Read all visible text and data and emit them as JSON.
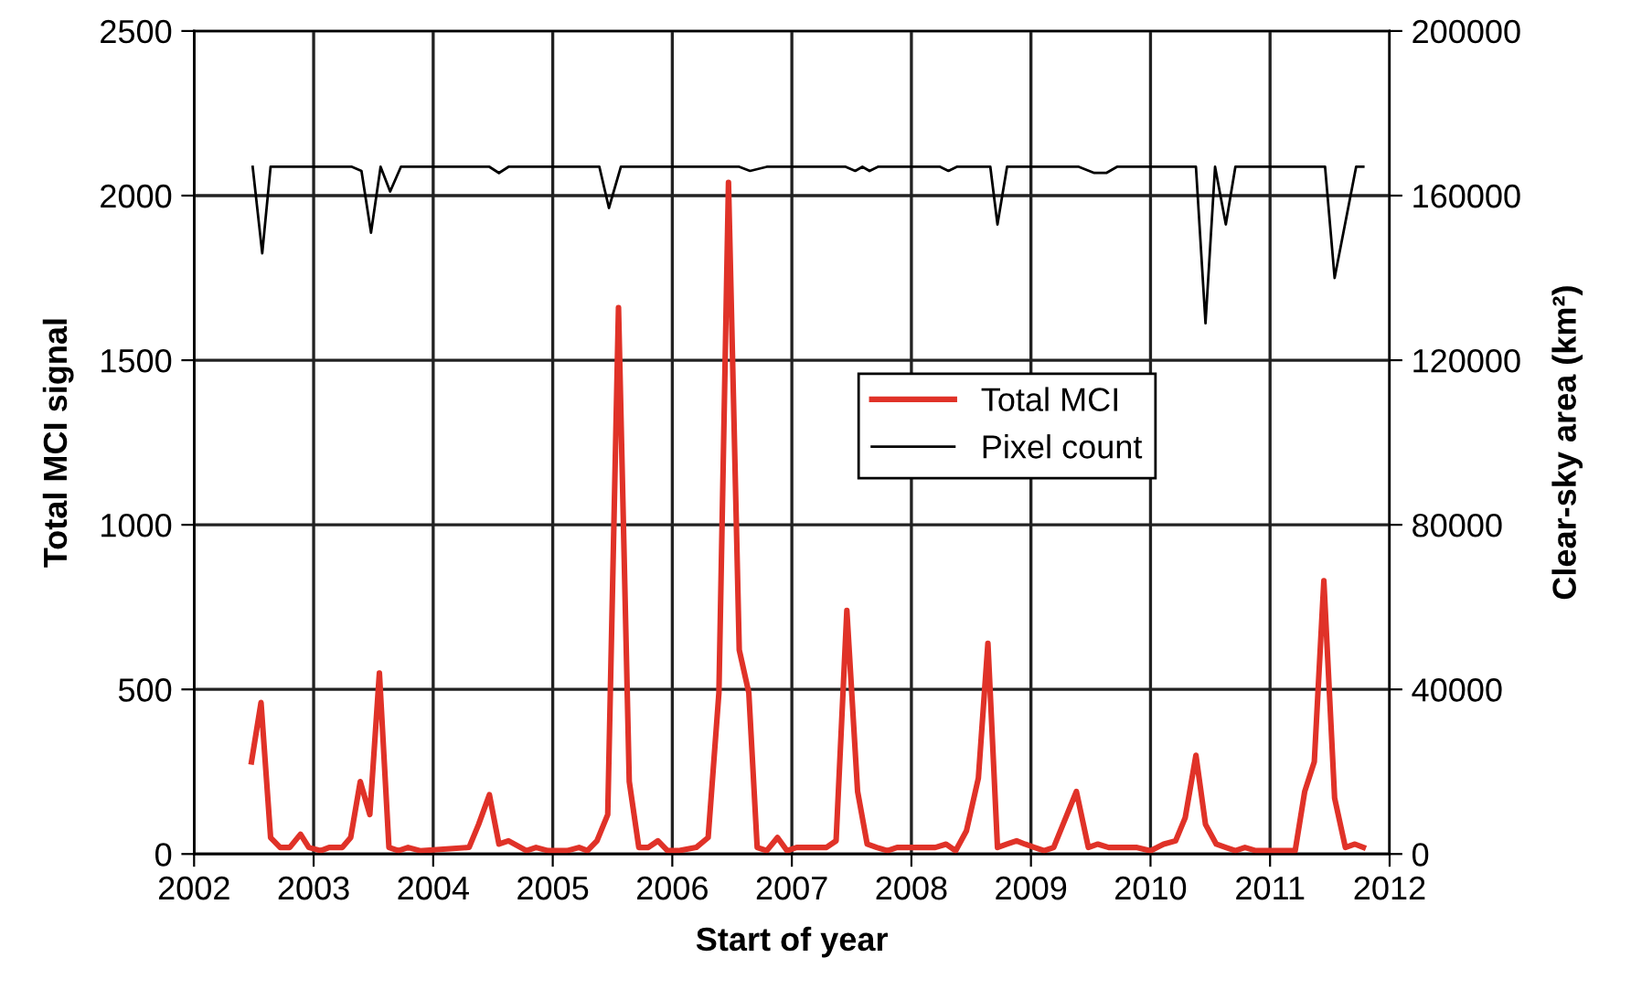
{
  "chart_data": {
    "type": "line",
    "xlabel": "Start of year",
    "ylabel": "Total MCI signal",
    "y2label": "Clear-sky area (km²)",
    "xlim": [
      2002,
      2012
    ],
    "xticks": [
      2002,
      2003,
      2004,
      2005,
      2006,
      2007,
      2008,
      2009,
      2010,
      2011,
      2012
    ],
    "ylim": [
      0,
      2500
    ],
    "yticks": [
      0,
      500,
      1000,
      1500,
      2000,
      2500
    ],
    "y2lim": [
      0,
      200000
    ],
    "y2ticks": [
      0,
      40000,
      80000,
      120000,
      160000,
      200000
    ],
    "grid": true,
    "legend": "center",
    "marker": "none",
    "line_style": "solid",
    "series": [
      {
        "name": "Total MCI",
        "color": "#e03228",
        "x": [
          2002.48,
          2002.56,
          2002.64,
          2002.72,
          2002.8,
          2002.89,
          2002.96,
          2003.06,
          2003.13,
          2003.24,
          2003.31,
          2003.39,
          2003.47,
          2003.55,
          2003.63,
          2003.71,
          2003.79,
          2003.89,
          2004.3,
          2004.38,
          2004.47,
          2004.55,
          2004.63,
          2004.78,
          2004.86,
          2004.96,
          2005.12,
          2005.22,
          2005.29,
          2005.37,
          2005.46,
          2005.55,
          2005.64,
          2005.72,
          2005.8,
          2005.88,
          2005.96,
          2006.05,
          2006.2,
          2006.3,
          2006.39,
          2006.47,
          2006.56,
          2006.64,
          2006.71,
          2006.79,
          2006.88,
          2006.96,
          2007.04,
          2007.21,
          2007.29,
          2007.37,
          2007.46,
          2007.55,
          2007.63,
          2007.71,
          2007.8,
          2007.88,
          2008.0,
          2008.2,
          2008.29,
          2008.37,
          2008.46,
          2008.56,
          2008.64,
          2008.72,
          2008.8,
          2008.88,
          2008.95,
          2009.03,
          2009.11,
          2009.19,
          2009.38,
          2009.48,
          2009.56,
          2009.65,
          2009.88,
          2010.0,
          2010.11,
          2010.21,
          2010.29,
          2010.38,
          2010.46,
          2010.55,
          2010.63,
          2010.71,
          2010.79,
          2010.88,
          2011.21,
          2011.29,
          2011.37,
          2011.45,
          2011.54,
          2011.63,
          2011.71,
          2011.78
        ],
        "values": [
          280,
          460,
          50,
          20,
          20,
          60,
          20,
          10,
          20,
          20,
          50,
          220,
          120,
          550,
          20,
          10,
          20,
          10,
          20,
          90,
          180,
          30,
          40,
          10,
          20,
          10,
          10,
          20,
          10,
          40,
          120,
          1660,
          220,
          20,
          20,
          40,
          10,
          10,
          20,
          50,
          490,
          2040,
          620,
          490,
          20,
          10,
          50,
          10,
          20,
          20,
          20,
          40,
          740,
          190,
          30,
          20,
          10,
          20,
          20,
          20,
          30,
          10,
          70,
          230,
          640,
          20,
          30,
          40,
          30,
          20,
          10,
          20,
          190,
          20,
          30,
          20,
          20,
          10,
          30,
          40,
          110,
          300,
          90,
          30,
          20,
          10,
          20,
          10,
          10,
          190,
          280,
          830,
          170,
          20,
          30,
          20
        ]
      },
      {
        "name": "Pixel count",
        "color": "#000000",
        "axis": "y2",
        "x": [
          2002.49,
          2002.57,
          2002.64,
          2003.32,
          2003.4,
          2003.48,
          2003.56,
          2003.64,
          2003.73,
          2004.47,
          2004.55,
          2004.63,
          2005.39,
          2005.47,
          2005.57,
          2006.56,
          2006.65,
          2006.79,
          2007.45,
          2007.53,
          2007.59,
          2007.65,
          2007.72,
          2008.24,
          2008.31,
          2008.38,
          2008.66,
          2008.72,
          2008.8,
          2009.4,
          2009.53,
          2009.63,
          2009.72,
          2010.38,
          2010.46,
          2010.54,
          2010.63,
          2010.71,
          2011.46,
          2011.54,
          2011.72,
          2011.78
        ],
        "values": [
          167000,
          146000,
          167000,
          167000,
          166000,
          151000,
          167000,
          161000,
          167000,
          167000,
          165500,
          167000,
          167000,
          157000,
          167000,
          167000,
          166000,
          167000,
          167000,
          166000,
          167000,
          166000,
          167000,
          167000,
          166000,
          167000,
          167000,
          153000,
          167000,
          167000,
          165500,
          165500,
          167000,
          167000,
          129000,
          167000,
          153000,
          167000,
          167000,
          140000,
          167000,
          167000
        ]
      }
    ]
  }
}
